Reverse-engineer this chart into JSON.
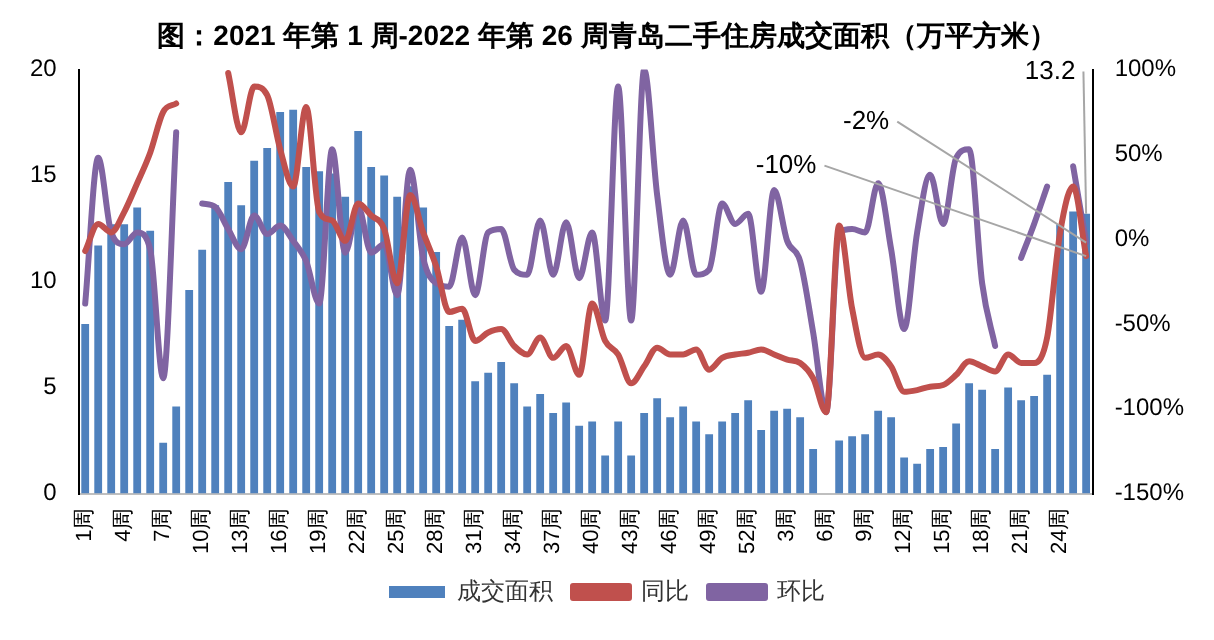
{
  "chart_data": {
    "type": "bar",
    "title": "图：2021 年第 1 周-2022 年第 26 周青岛二手住房成交面积（万平方米）",
    "categories": [
      "1周",
      null,
      null,
      "4周",
      null,
      null,
      "7周",
      null,
      null,
      "10周",
      null,
      null,
      "13周",
      null,
      null,
      "16周",
      null,
      null,
      "19周",
      null,
      null,
      "22周",
      null,
      null,
      "25周",
      null,
      null,
      "28周",
      null,
      null,
      "31周",
      null,
      null,
      "34周",
      null,
      null,
      "37周",
      null,
      null,
      "40周",
      null,
      null,
      "43周",
      null,
      null,
      "46周",
      null,
      null,
      "49周",
      null,
      null,
      "52周",
      null,
      null,
      "3周",
      null,
      null,
      "6周",
      null,
      null,
      "9周",
      null,
      null,
      "12周",
      null,
      null,
      "15周",
      null,
      null,
      "18周",
      null,
      null,
      "21周",
      null,
      null,
      "24周",
      null,
      null
    ],
    "series": [
      {
        "name": "成交面积",
        "color": "#4f81bd",
        "values": [
          8.0,
          11.7,
          12.7,
          12.7,
          13.5,
          12.4,
          2.4,
          4.1,
          9.6,
          11.5,
          13.6,
          14.7,
          13.6,
          15.7,
          16.3,
          18.0,
          18.1,
          15.4,
          15.2,
          15.1,
          14.0,
          17.1,
          15.4,
          15.0,
          14.0,
          14.5,
          13.5,
          11.4,
          7.9,
          8.2,
          5.3,
          5.7,
          6.2,
          5.2,
          4.1,
          4.7,
          3.8,
          4.3,
          3.2,
          3.4,
          1.8,
          3.4,
          1.8,
          3.8,
          4.5,
          3.6,
          4.1,
          3.4,
          2.8,
          3.4,
          3.8,
          4.4,
          3.0,
          3.9,
          4.0,
          3.6,
          2.1,
          null,
          2.5,
          2.7,
          2.8,
          3.9,
          3.6,
          1.7,
          1.4,
          2.1,
          2.2,
          3.3,
          5.2,
          4.9,
          2.1,
          5.0,
          4.4,
          4.6,
          5.6,
          12.7,
          13.3,
          13.2
        ],
        "value_labels": [
          null,
          null,
          null,
          null,
          null,
          null,
          null,
          null,
          null,
          null,
          null,
          null,
          null,
          null,
          null,
          null,
          null,
          null,
          null,
          null,
          null,
          null,
          null,
          null,
          null,
          null,
          null,
          null,
          null,
          null,
          null,
          null,
          null,
          null,
          null,
          null,
          null,
          null,
          null,
          null,
          null,
          null,
          null,
          null,
          null,
          null,
          null,
          null,
          null,
          null,
          null,
          null,
          null,
          null,
          null,
          null,
          null,
          null,
          null,
          null,
          null,
          null,
          null,
          null,
          null,
          null,
          null,
          null,
          null,
          null,
          null,
          null,
          null,
          null,
          null,
          null,
          null,
          "13.2"
        ]
      },
      {
        "name": "同比",
        "type": "line",
        "axis": "y2",
        "color": "#c0504d",
        "values": [
          -7,
          9,
          4,
          16,
          33,
          51,
          75,
          80,
          null,
          null,
          null,
          98,
          63,
          90,
          85,
          53,
          31,
          78,
          16,
          11,
          -1,
          21,
          14,
          6,
          -26,
          26,
          4,
          -16,
          -43,
          -41,
          -60,
          -55,
          -53,
          -63,
          -68,
          -58,
          -70,
          -63,
          -80,
          -38,
          -60,
          -68,
          -85,
          -75,
          -64,
          -68,
          -68,
          -65,
          -77,
          -70,
          -68,
          -67,
          -65,
          -68,
          -71,
          -73,
          -82,
          -102,
          8,
          -41,
          -70,
          -68,
          -75,
          -90,
          -89,
          -87,
          -86,
          -80,
          -72,
          -75,
          -78,
          -68,
          -73,
          -73,
          -58,
          4,
          31,
          -10
        ],
        "value_labels": [
          null,
          null,
          null,
          null,
          null,
          null,
          null,
          null,
          null,
          null,
          null,
          null,
          null,
          null,
          null,
          null,
          null,
          null,
          null,
          null,
          null,
          null,
          null,
          null,
          null,
          null,
          null,
          null,
          null,
          null,
          null,
          null,
          null,
          null,
          null,
          null,
          null,
          null,
          null,
          null,
          null,
          null,
          null,
          null,
          null,
          null,
          null,
          null,
          null,
          null,
          null,
          null,
          null,
          null,
          null,
          null,
          null,
          null,
          null,
          null,
          null,
          null,
          null,
          null,
          null,
          null,
          null,
          null,
          null,
          null,
          null,
          null,
          null,
          null,
          null,
          null,
          null,
          "-10%"
        ]
      },
      {
        "name": "环比",
        "type": "line",
        "axis": "y2",
        "color": "#8064a2",
        "values": [
          -38,
          48,
          4,
          -3,
          4,
          -6,
          -82,
          63,
          null,
          21,
          19,
          6,
          -6,
          14,
          3,
          8,
          -1,
          -13,
          -38,
          53,
          -8,
          19,
          -8,
          -3,
          -33,
          41,
          -11,
          -26,
          -28,
          1,
          -33,
          4,
          6,
          -18,
          -21,
          11,
          -21,
          10,
          -23,
          4,
          -48,
          90,
          -48,
          100,
          26,
          -21,
          11,
          -21,
          -18,
          21,
          9,
          15,
          -31,
          29,
          -1,
          -13,
          -55,
          -102,
          4,
          6,
          4,
          33,
          -6,
          -53,
          4,
          38,
          9,
          48,
          53,
          -26,
          -63,
          null,
          -11,
          9,
          31,
          null,
          43,
          -2
        ],
        "value_labels": [
          null,
          null,
          null,
          null,
          null,
          null,
          null,
          null,
          null,
          null,
          null,
          null,
          null,
          null,
          null,
          null,
          null,
          null,
          null,
          null,
          null,
          null,
          null,
          null,
          null,
          null,
          null,
          null,
          null,
          null,
          null,
          null,
          null,
          null,
          null,
          null,
          null,
          null,
          null,
          null,
          null,
          null,
          null,
          null,
          null,
          null,
          null,
          null,
          null,
          null,
          null,
          null,
          null,
          null,
          null,
          null,
          null,
          null,
          null,
          null,
          null,
          null,
          null,
          null,
          null,
          null,
          null,
          null,
          null,
          null,
          null,
          null,
          null,
          null,
          null,
          null,
          null,
          "-2%"
        ]
      }
    ],
    "ylim": [
      0,
      20
    ],
    "yticks": [
      0,
      5,
      10,
      15,
      20
    ],
    "y2lim": [
      -150,
      100
    ],
    "y2ticks": [
      {
        "value": -150,
        "label": "-150%"
      },
      {
        "value": -100,
        "label": "-100%"
      },
      {
        "value": -50,
        "label": "-50%"
      },
      {
        "value": 0,
        "label": "0%"
      },
      {
        "value": 50,
        "label": "50%"
      },
      {
        "value": 100,
        "label": "100%"
      }
    ],
    "legend": "bottom",
    "grid": false,
    "marker": "none",
    "line_style": "solid"
  }
}
